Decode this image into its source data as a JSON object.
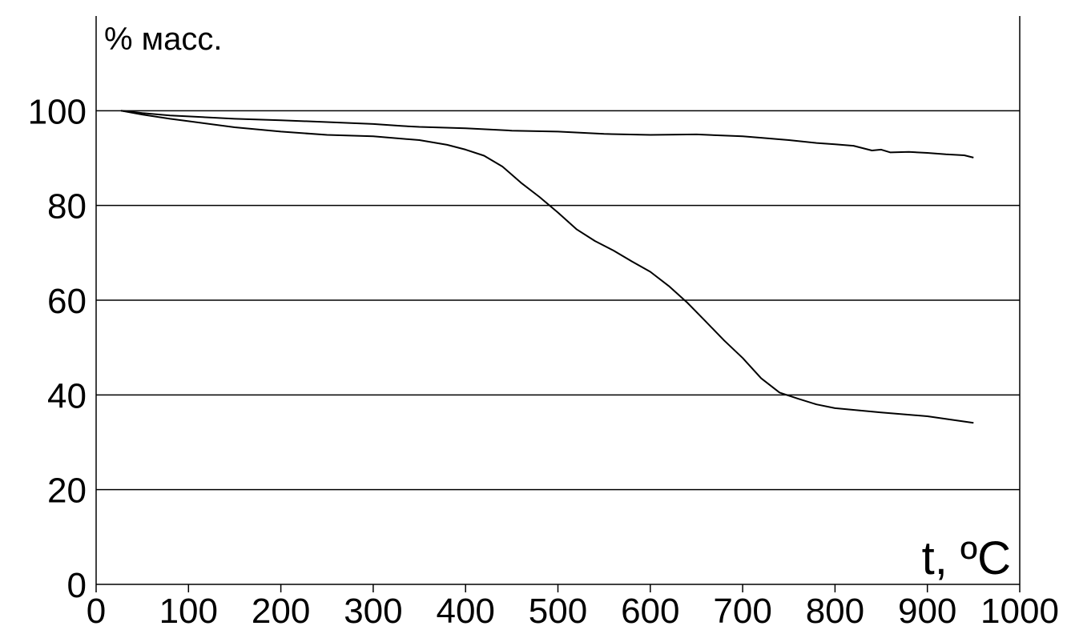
{
  "chart_data": {
    "type": "line",
    "title": "",
    "xlabel": "t, ºC",
    "ylabel": "% масс.",
    "xlim": [
      0,
      1000
    ],
    "ylim": [
      0,
      120
    ],
    "grid": "horizontal",
    "x_ticks": [
      0,
      100,
      200,
      300,
      400,
      500,
      600,
      700,
      800,
      900,
      1000
    ],
    "x_tick_labels": [
      "0",
      "100",
      "200",
      "300",
      "400",
      "500",
      "600",
      "700",
      "800",
      "900",
      "1000"
    ],
    "y_ticks": [
      0,
      20,
      40,
      60,
      80,
      100
    ],
    "y_tick_labels": [
      "0",
      "20",
      "40",
      "60",
      "80",
      "100"
    ],
    "series": [
      {
        "x": [
          27,
          50,
          80,
          100,
          150,
          200,
          250,
          300,
          330,
          350,
          400,
          450,
          500,
          550,
          600,
          650,
          700,
          720,
          750,
          780,
          800,
          820,
          840,
          850,
          860,
          880,
          900,
          920,
          940,
          950
        ],
        "y": [
          100,
          99.5,
          99.0,
          98.8,
          98.3,
          98.0,
          97.6,
          97.2,
          96.8,
          96.6,
          96.3,
          95.8,
          95.6,
          95.1,
          94.9,
          95.0,
          94.6,
          94.3,
          93.8,
          93.2,
          92.9,
          92.6,
          91.6,
          91.8,
          91.2,
          91.3,
          91.1,
          90.8,
          90.6,
          90.1
        ]
      },
      {
        "x": [
          27,
          50,
          80,
          100,
          150,
          200,
          250,
          300,
          350,
          380,
          400,
          420,
          440,
          460,
          480,
          500,
          520,
          540,
          560,
          580,
          600,
          620,
          640,
          660,
          680,
          700,
          720,
          740,
          760,
          780,
          800,
          850,
          900,
          950
        ],
        "y": [
          100,
          99.2,
          98.3,
          97.8,
          96.5,
          95.6,
          94.9,
          94.6,
          93.8,
          92.8,
          91.8,
          90.5,
          88.2,
          84.8,
          81.8,
          78.5,
          75.0,
          72.5,
          70.5,
          68.2,
          66.0,
          63.0,
          59.5,
          55.5,
          51.5,
          47.8,
          43.5,
          40.5,
          39.2,
          38.0,
          37.2,
          36.3,
          35.5,
          34.1
        ]
      }
    ]
  }
}
